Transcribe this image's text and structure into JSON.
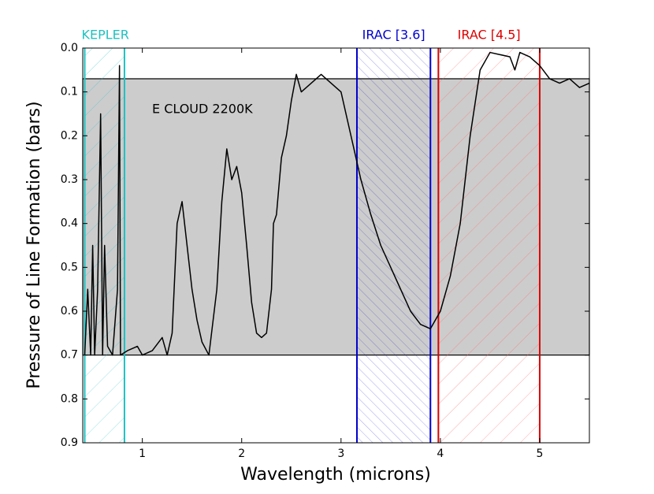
{
  "chart_data": {
    "type": "line",
    "x_label": "Wavelength (microns)",
    "y_label": "Pressure of Line Formation (bars)",
    "xlim": [
      0.4,
      5.5
    ],
    "xticks": [
      1,
      2,
      3,
      4,
      5
    ],
    "ylim": [
      0.9,
      0
    ],
    "yticks": [
      {
        "value": 0,
        "label": "0.0"
      },
      0.1,
      0.2,
      0.3,
      0.4,
      0.5,
      0.6,
      0.7,
      0.8,
      0.9
    ],
    "cloud": {
      "label": "E CLOUD 2200K",
      "top": 0.07,
      "bottom": 0.7,
      "color": "#cccccc"
    },
    "regions": [
      {
        "name": "KEPLER",
        "xmin": 0.42,
        "xmax": 0.82,
        "color": "#20c0c0"
      },
      {
        "name": "IRAC [3.6]",
        "xmin": 3.16,
        "xmax": 3.9,
        "color": "#0000cc"
      },
      {
        "name": "IRAC [4.5]",
        "xmin": 3.98,
        "xmax": 5.0,
        "color": "#dd0000"
      }
    ],
    "series": [
      {
        "color": "#000000",
        "x": [
          0.42,
          0.45,
          0.48,
          0.5,
          0.52,
          0.55,
          0.58,
          0.6,
          0.62,
          0.65,
          0.7,
          0.75,
          0.77,
          0.78,
          0.85,
          0.95,
          1.0,
          1.1,
          1.2,
          1.25,
          1.3,
          1.35,
          1.4,
          1.45,
          1.5,
          1.55,
          1.6,
          1.67,
          1.75,
          1.8,
          1.85,
          1.9,
          1.95,
          2.0,
          2.05,
          2.1,
          2.15,
          2.2,
          2.25,
          2.3,
          2.32,
          2.35,
          2.4,
          2.45,
          2.5,
          2.55,
          2.6,
          2.7,
          2.8,
          2.9,
          3.0,
          3.1,
          3.2,
          3.3,
          3.4,
          3.5,
          3.6,
          3.7,
          3.8,
          3.9,
          4.0,
          4.1,
          4.2,
          4.3,
          4.4,
          4.5,
          4.6,
          4.7,
          4.75,
          4.8,
          4.9,
          5.0,
          5.1,
          5.2,
          5.3,
          5.4,
          5.5
        ],
        "values": [
          0.7,
          0.55,
          0.7,
          0.45,
          0.7,
          0.55,
          0.15,
          0.7,
          0.45,
          0.68,
          0.7,
          0.55,
          0.04,
          0.7,
          0.69,
          0.68,
          0.7,
          0.69,
          0.66,
          0.7,
          0.65,
          0.4,
          0.35,
          0.45,
          0.55,
          0.62,
          0.67,
          0.7,
          0.55,
          0.35,
          0.23,
          0.3,
          0.27,
          0.33,
          0.45,
          0.58,
          0.65,
          0.66,
          0.65,
          0.55,
          0.4,
          0.38,
          0.25,
          0.2,
          0.12,
          0.06,
          0.1,
          0.08,
          0.06,
          0.08,
          0.1,
          0.2,
          0.3,
          0.38,
          0.45,
          0.5,
          0.55,
          0.6,
          0.63,
          0.64,
          0.6,
          0.52,
          0.4,
          0.2,
          0.05,
          0.01,
          0.015,
          0.02,
          0.05,
          0.01,
          0.02,
          0.04,
          0.07,
          0.08,
          0.07,
          0.09,
          0.08
        ]
      }
    ]
  }
}
